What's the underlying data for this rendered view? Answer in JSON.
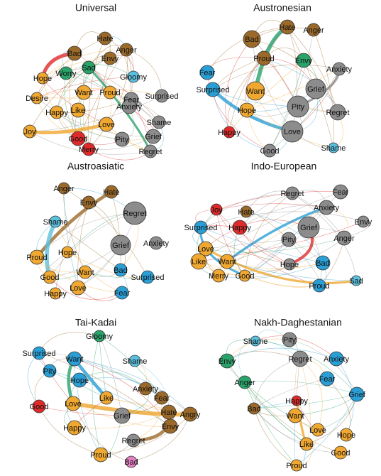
{
  "panels": [
    {
      "title": "Universal",
      "nodes": [
        {
          "label": "Bad",
          "color": "#9b6a2a"
        },
        {
          "label": "Hate",
          "color": "#9b6a2a"
        },
        {
          "label": "Anger",
          "color": "#9b6a2a"
        },
        {
          "label": "Envy",
          "color": "#9b6a2a"
        },
        {
          "label": "Worry",
          "color": "#2aa36b"
        },
        {
          "label": "Sad",
          "color": "#2aa36b"
        },
        {
          "label": "Gloomy",
          "color": "#5bc0de"
        },
        {
          "label": "Hope",
          "color": "#f0a830"
        },
        {
          "label": "Desire",
          "color": "#f0a830"
        },
        {
          "label": "Happy",
          "color": "#f0a830"
        },
        {
          "label": "Want",
          "color": "#f0a830"
        },
        {
          "label": "Proud",
          "color": "#f0a830"
        },
        {
          "label": "Like",
          "color": "#f0a830"
        },
        {
          "label": "Fear",
          "color": "#8c8c8c"
        },
        {
          "label": "Surprised",
          "color": "#8c8c8c"
        },
        {
          "label": "Anxiety",
          "color": "#8c8c8c"
        },
        {
          "label": "Love",
          "color": "#f0a830"
        },
        {
          "label": "Joy",
          "color": "#f0a830"
        },
        {
          "label": "Shame",
          "color": "#8c8c8c"
        },
        {
          "label": "Good",
          "color": "#e02a2a"
        },
        {
          "label": "Pity",
          "color": "#8c8c8c"
        },
        {
          "label": "Grief",
          "color": "#8c8c8c"
        },
        {
          "label": "Merry",
          "color": "#e02a2a"
        },
        {
          "label": "Regret",
          "color": "#8c8c8c"
        }
      ]
    },
    {
      "title": "Austronesian",
      "nodes": [
        {
          "label": "Bad",
          "color": "#9b6a2a"
        },
        {
          "label": "Hate",
          "color": "#9b6a2a"
        },
        {
          "label": "Anger",
          "color": "#9b6a2a"
        },
        {
          "label": "Proud",
          "color": "#9b6a2a"
        },
        {
          "label": "Envy",
          "color": "#2aa36b"
        },
        {
          "label": "Anxiety",
          "color": "#8c8c8c"
        },
        {
          "label": "Fear",
          "color": "#2a9fd6"
        },
        {
          "label": "Surprised",
          "color": "#2a9fd6"
        },
        {
          "label": "Want",
          "color": "#f0a830"
        },
        {
          "label": "Grief",
          "color": "#8c8c8c"
        },
        {
          "label": "Pity",
          "color": "#8c8c8c"
        },
        {
          "label": "Hope",
          "color": "#f0a830"
        },
        {
          "label": "Regret",
          "color": "#8c8c8c"
        },
        {
          "label": "Happy",
          "color": "#e02a2a"
        },
        {
          "label": "Love",
          "color": "#8c8c8c"
        },
        {
          "label": "Shame",
          "color": "#5bc0de"
        },
        {
          "label": "Good",
          "color": "#8c8c8c"
        }
      ]
    },
    {
      "title": "Austroasiatic",
      "nodes": [
        {
          "label": "Anger",
          "color": "#9b6a2a"
        },
        {
          "label": "Hate",
          "color": "#9b6a2a"
        },
        {
          "label": "Envy",
          "color": "#9b6a2a"
        },
        {
          "label": "Regret",
          "color": "#8c8c8c"
        },
        {
          "label": "Shame",
          "color": "#5bc0de"
        },
        {
          "label": "Grief",
          "color": "#8c8c8c"
        },
        {
          "label": "Anxiety",
          "color": "#8c8c8c"
        },
        {
          "label": "Hope",
          "color": "#f0a830"
        },
        {
          "label": "Proud",
          "color": "#f0a830"
        },
        {
          "label": "Want",
          "color": "#f0a830"
        },
        {
          "label": "Bad",
          "color": "#2a9fd6"
        },
        {
          "label": "Good",
          "color": "#f0a830"
        },
        {
          "label": "Surprised",
          "color": "#2a9fd6"
        },
        {
          "label": "Love",
          "color": "#f0a830"
        },
        {
          "label": "Happy",
          "color": "#f0a830"
        },
        {
          "label": "Fear",
          "color": "#2a9fd6"
        }
      ]
    },
    {
      "title": "Indo-European",
      "nodes": [
        {
          "label": "Regret",
          "color": "#8c8c8c"
        },
        {
          "label": "Fear",
          "color": "#8c8c8c"
        },
        {
          "label": "Joy",
          "color": "#e02a2a"
        },
        {
          "label": "Hate",
          "color": "#9b6a2a"
        },
        {
          "label": "Anxiety",
          "color": "#8c8c8c"
        },
        {
          "label": "Envy",
          "color": "#8c8c8c"
        },
        {
          "label": "Surprised",
          "color": "#2a9fd6"
        },
        {
          "label": "Happy",
          "color": "#e02a2a"
        },
        {
          "label": "Grief",
          "color": "#8c8c8c"
        },
        {
          "label": "Pity",
          "color": "#8c8c8c"
        },
        {
          "label": "Anger",
          "color": "#8c8c8c"
        },
        {
          "label": "Love",
          "color": "#f0a830"
        },
        {
          "label": "Like",
          "color": "#f0a830"
        },
        {
          "label": "Want",
          "color": "#f0a830"
        },
        {
          "label": "Hope",
          "color": "#8c8c8c"
        },
        {
          "label": "Bad",
          "color": "#2a9fd6"
        },
        {
          "label": "Merry",
          "color": "#f0a830"
        },
        {
          "label": "Good",
          "color": "#f0a830"
        },
        {
          "label": "Proud",
          "color": "#2a9fd6"
        },
        {
          "label": "Sad",
          "color": "#5bc0de"
        }
      ]
    },
    {
      "title": "Tai-Kadai",
      "nodes": [
        {
          "label": "Gloomy",
          "color": "#2aa36b"
        },
        {
          "label": "Surprised",
          "color": "#2a9fd6"
        },
        {
          "label": "Want",
          "color": "#2a9fd6"
        },
        {
          "label": "Pity",
          "color": "#2a9fd6"
        },
        {
          "label": "Shame",
          "color": "#5bc0de"
        },
        {
          "label": "Hope",
          "color": "#2a9fd6"
        },
        {
          "label": "Good",
          "color": "#e02a2a"
        },
        {
          "label": "Love",
          "color": "#f0a830"
        },
        {
          "label": "Like",
          "color": "#f0a830"
        },
        {
          "label": "Anxiety",
          "color": "#9b6a2a"
        },
        {
          "label": "Fear",
          "color": "#9b6a2a"
        },
        {
          "label": "Happy",
          "color": "#f0a830"
        },
        {
          "label": "Grief",
          "color": "#8c8c8c"
        },
        {
          "label": "Hate",
          "color": "#9b6a2a"
        },
        {
          "label": "Angry",
          "color": "#9b6a2a"
        },
        {
          "label": "Envy",
          "color": "#9b6a2a"
        },
        {
          "label": "Regret",
          "color": "#8c8c8c"
        },
        {
          "label": "Proud",
          "color": "#f0a830"
        },
        {
          "label": "Bad",
          "color": "#e080c0"
        }
      ]
    },
    {
      "title": "Nakh-Daghestanian",
      "nodes": [
        {
          "label": "Shame",
          "color": "#5bc0de"
        },
        {
          "label": "Pity",
          "color": "#8c8c8c"
        },
        {
          "label": "Regret",
          "color": "#8c8c8c"
        },
        {
          "label": "Anxiety",
          "color": "#2a9fd6"
        },
        {
          "label": "Envy",
          "color": "#2aa36b"
        },
        {
          "label": "Fear",
          "color": "#2a9fd6"
        },
        {
          "label": "Anger",
          "color": "#2aa36b"
        },
        {
          "label": "Grief",
          "color": "#2a9fd6"
        },
        {
          "label": "Happy",
          "color": "#e02a2a"
        },
        {
          "label": "Bad",
          "color": "#9b6a2a"
        },
        {
          "label": "Want",
          "color": "#f0a830"
        },
        {
          "label": "Love",
          "color": "#f0a830"
        },
        {
          "label": "Hope",
          "color": "#f0a830"
        },
        {
          "label": "Like",
          "color": "#f0a830"
        },
        {
          "label": "Good",
          "color": "#f0a830"
        },
        {
          "label": "Proud",
          "color": "#f0a830"
        }
      ]
    }
  ]
}
